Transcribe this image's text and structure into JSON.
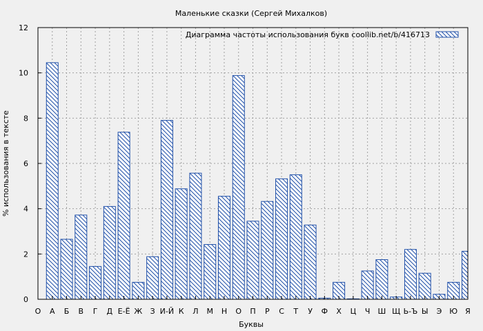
{
  "chart_data": {
    "type": "bar",
    "title": "Маленькие сказки (Сергей Михалков)",
    "xlabel": "Буквы",
    "ylabel": "% использования в тексте",
    "ylim": [
      0,
      12
    ],
    "yticks": [
      0,
      2,
      4,
      6,
      8,
      10,
      12
    ],
    "grid": true,
    "legend_position": "top-right",
    "categories": [
      "О",
      "А",
      "Б",
      "В",
      "Г",
      "Д",
      "Е-Ё",
      "Ж",
      "З",
      "И-Й",
      "К",
      "Л",
      "М",
      "Н",
      "О",
      "П",
      "Р",
      "С",
      "Т",
      "У",
      "Ф",
      "Х",
      "Ц",
      "Ч",
      "Ш",
      "Щ",
      "Ь-Ъ",
      "Ы",
      "Э",
      "Ю",
      "Я"
    ],
    "series": [
      {
        "name": "Диаграмма частоты использования букв  coollib.net/b/416713",
        "values": [
          null,
          10.45,
          2.65,
          3.72,
          1.45,
          4.1,
          7.38,
          0.75,
          1.88,
          7.9,
          4.88,
          5.57,
          2.42,
          4.55,
          9.88,
          3.45,
          4.32,
          5.32,
          5.5,
          3.28,
          0.05,
          0.75,
          0.02,
          1.25,
          1.75,
          0.1,
          2.2,
          1.15,
          0.22,
          0.75,
          2.12
        ]
      }
    ],
    "colors": {
      "bar_stroke": "#1f4fa8",
      "hatch": "#1f4fa8",
      "grid": "#a0a0a0",
      "background": "#f0f0f0"
    }
  }
}
